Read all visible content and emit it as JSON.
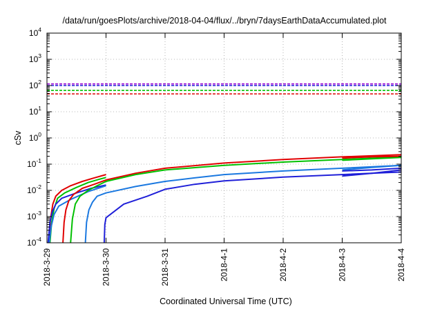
{
  "chart_data": {
    "type": "line",
    "title": "/data/run/goesPlots/archive/2018-04-04/flux/../bryn/7daysEarthDataAccumulated.plot",
    "xlabel": "Coordinated Universal Time (UTC)",
    "ylabel": "cSv",
    "y_scale": "log",
    "ylim": [
      0.0001,
      10000
    ],
    "xlim": [
      0,
      6
    ],
    "grid": true,
    "x_ticks": [
      {
        "value": 0,
        "label": "2018-3-29"
      },
      {
        "value": 1,
        "label": "2018-3-30"
      },
      {
        "value": 2,
        "label": "2018-3-31"
      },
      {
        "value": 3,
        "label": "2018-4-1"
      },
      {
        "value": 4,
        "label": "2018-4-2"
      },
      {
        "value": 5,
        "label": "2018-4-3"
      },
      {
        "value": 6,
        "label": "2018-4-4"
      }
    ],
    "y_ticks": [
      {
        "value": 0.0001,
        "base": "10",
        "exp": "-4"
      },
      {
        "value": 0.001,
        "base": "10",
        "exp": "-3"
      },
      {
        "value": 0.01,
        "base": "10",
        "exp": "-2"
      },
      {
        "value": 0.1,
        "base": "10",
        "exp": "-1"
      },
      {
        "value": 1,
        "base": "10",
        "exp": "0"
      },
      {
        "value": 10,
        "base": "10",
        "exp": "1"
      },
      {
        "value": 100,
        "base": "10",
        "exp": "2"
      },
      {
        "value": 1000,
        "base": "10",
        "exp": "3"
      },
      {
        "value": 10000,
        "base": "10",
        "exp": "4"
      }
    ],
    "reference_lines": [
      {
        "color": "#9400d3",
        "y": 115
      },
      {
        "color": "#1f1fd8",
        "y": 100
      },
      {
        "color": "#00c000",
        "y": 65
      },
      {
        "color": "#e00000",
        "y": 48
      }
    ],
    "series": [
      {
        "color": "#e00000",
        "points": [
          [
            0.03,
            0.0001
          ],
          [
            0.06,
            0.0008
          ],
          [
            0.1,
            0.003
          ],
          [
            0.15,
            0.006
          ],
          [
            0.25,
            0.01
          ],
          [
            0.4,
            0.015
          ],
          [
            0.6,
            0.022
          ],
          [
            0.8,
            0.03
          ],
          [
            1.0,
            0.04
          ]
        ]
      },
      {
        "color": "#00c000",
        "points": [
          [
            0.05,
            0.0001
          ],
          [
            0.08,
            0.0006
          ],
          [
            0.12,
            0.002
          ],
          [
            0.18,
            0.005
          ],
          [
            0.3,
            0.008
          ],
          [
            0.5,
            0.013
          ],
          [
            0.7,
            0.02
          ],
          [
            0.9,
            0.027
          ],
          [
            1.0,
            0.031
          ]
        ]
      },
      {
        "color": "#1f1fd8",
        "points": [
          [
            0.02,
            0.0001
          ],
          [
            0.05,
            0.0006
          ],
          [
            0.09,
            0.0015
          ],
          [
            0.15,
            0.003
          ],
          [
            0.25,
            0.005
          ],
          [
            0.5,
            0.008
          ],
          [
            0.75,
            0.012
          ],
          [
            1.0,
            0.016
          ]
        ]
      },
      {
        "color": "#1a78e0",
        "points": [
          [
            0.04,
            0.0001
          ],
          [
            0.07,
            0.0004
          ],
          [
            0.12,
            0.0012
          ],
          [
            0.2,
            0.0025
          ],
          [
            0.4,
            0.0045
          ],
          [
            0.7,
            0.009
          ],
          [
            1.0,
            0.015
          ]
        ]
      },
      {
        "color": "#e00000",
        "points": [
          [
            0.27,
            0.0001
          ],
          [
            0.29,
            0.0006
          ],
          [
            0.32,
            0.0018
          ],
          [
            0.37,
            0.004
          ],
          [
            0.45,
            0.007
          ],
          [
            0.6,
            0.012
          ],
          [
            0.8,
            0.017
          ],
          [
            1.0,
            0.025
          ],
          [
            1.5,
            0.045
          ],
          [
            2.0,
            0.07
          ],
          [
            3.0,
            0.11
          ],
          [
            4.0,
            0.15
          ],
          [
            5.0,
            0.19
          ],
          [
            6.0,
            0.23
          ]
        ]
      },
      {
        "color": "#00c000",
        "points": [
          [
            0.4,
            0.0001
          ],
          [
            0.43,
            0.0008
          ],
          [
            0.48,
            0.003
          ],
          [
            0.56,
            0.006
          ],
          [
            0.7,
            0.01
          ],
          [
            0.85,
            0.015
          ],
          [
            1.0,
            0.022
          ],
          [
            1.5,
            0.04
          ],
          [
            2.0,
            0.06
          ],
          [
            3.0,
            0.09
          ],
          [
            4.0,
            0.12
          ],
          [
            5.0,
            0.15
          ],
          [
            6.0,
            0.19
          ]
        ]
      },
      {
        "color": "#1a78e0",
        "points": [
          [
            0.65,
            0.0001
          ],
          [
            0.67,
            0.0006
          ],
          [
            0.71,
            0.0018
          ],
          [
            0.77,
            0.0035
          ],
          [
            0.85,
            0.006
          ],
          [
            1.0,
            0.008
          ],
          [
            1.5,
            0.014
          ],
          [
            2.0,
            0.022
          ],
          [
            2.5,
            0.03
          ],
          [
            3.0,
            0.04
          ],
          [
            4.0,
            0.055
          ],
          [
            5.0,
            0.07
          ],
          [
            6.0,
            0.09
          ]
        ]
      },
      {
        "color": "#1f1fd8",
        "points": [
          [
            0.97,
            0.0001
          ],
          [
            0.98,
            0.0005
          ],
          [
            1.0,
            0.0009
          ],
          [
            1.3,
            0.003
          ],
          [
            1.7,
            0.006
          ],
          [
            2.0,
            0.011
          ],
          [
            2.5,
            0.017
          ],
          [
            3.0,
            0.023
          ],
          [
            4.0,
            0.032
          ],
          [
            5.0,
            0.04
          ],
          [
            6.0,
            0.05
          ]
        ]
      },
      {
        "color": "#e00000",
        "points": [
          [
            5.0,
            0.17
          ],
          [
            5.5,
            0.19
          ],
          [
            6.0,
            0.2
          ]
        ]
      },
      {
        "color": "#00c000",
        "points": [
          [
            5.0,
            0.14
          ],
          [
            5.5,
            0.16
          ],
          [
            6.0,
            0.18
          ]
        ]
      },
      {
        "color": "#1a78e0",
        "points": [
          [
            5.0,
            0.06
          ],
          [
            5.5,
            0.075
          ],
          [
            6.0,
            0.09
          ]
        ]
      },
      {
        "color": "#1f1fd8",
        "points": [
          [
            5.0,
            0.055
          ],
          [
            5.5,
            0.06
          ],
          [
            6.0,
            0.07
          ]
        ]
      },
      {
        "color": "#1f1fd8",
        "points": [
          [
            5.0,
            0.035
          ],
          [
            5.5,
            0.045
          ],
          [
            6.0,
            0.06
          ]
        ]
      }
    ]
  }
}
